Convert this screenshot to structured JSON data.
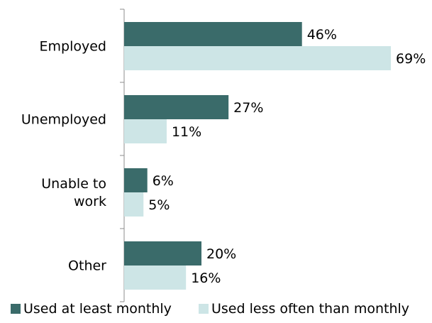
{
  "chart_data": {
    "type": "bar",
    "orientation": "horizontal",
    "categories": [
      "Employed",
      "Unemployed",
      "Unable to work",
      "Other"
    ],
    "category_lines": [
      [
        "Employed"
      ],
      [
        "Unemployed"
      ],
      [
        "Unable to",
        "work"
      ],
      [
        "Other"
      ]
    ],
    "series": [
      {
        "name": "Used at least monthly",
        "values": [
          46,
          27,
          6,
          20
        ],
        "color": "#3a6b6a"
      },
      {
        "name": "Used less often than monthly",
        "values": [
          69,
          11,
          5,
          16
        ],
        "color": "#cde5e6"
      }
    ],
    "value_suffix": "%",
    "xlim": [
      0,
      69
    ],
    "legend_position": "bottom",
    "grid": false
  }
}
